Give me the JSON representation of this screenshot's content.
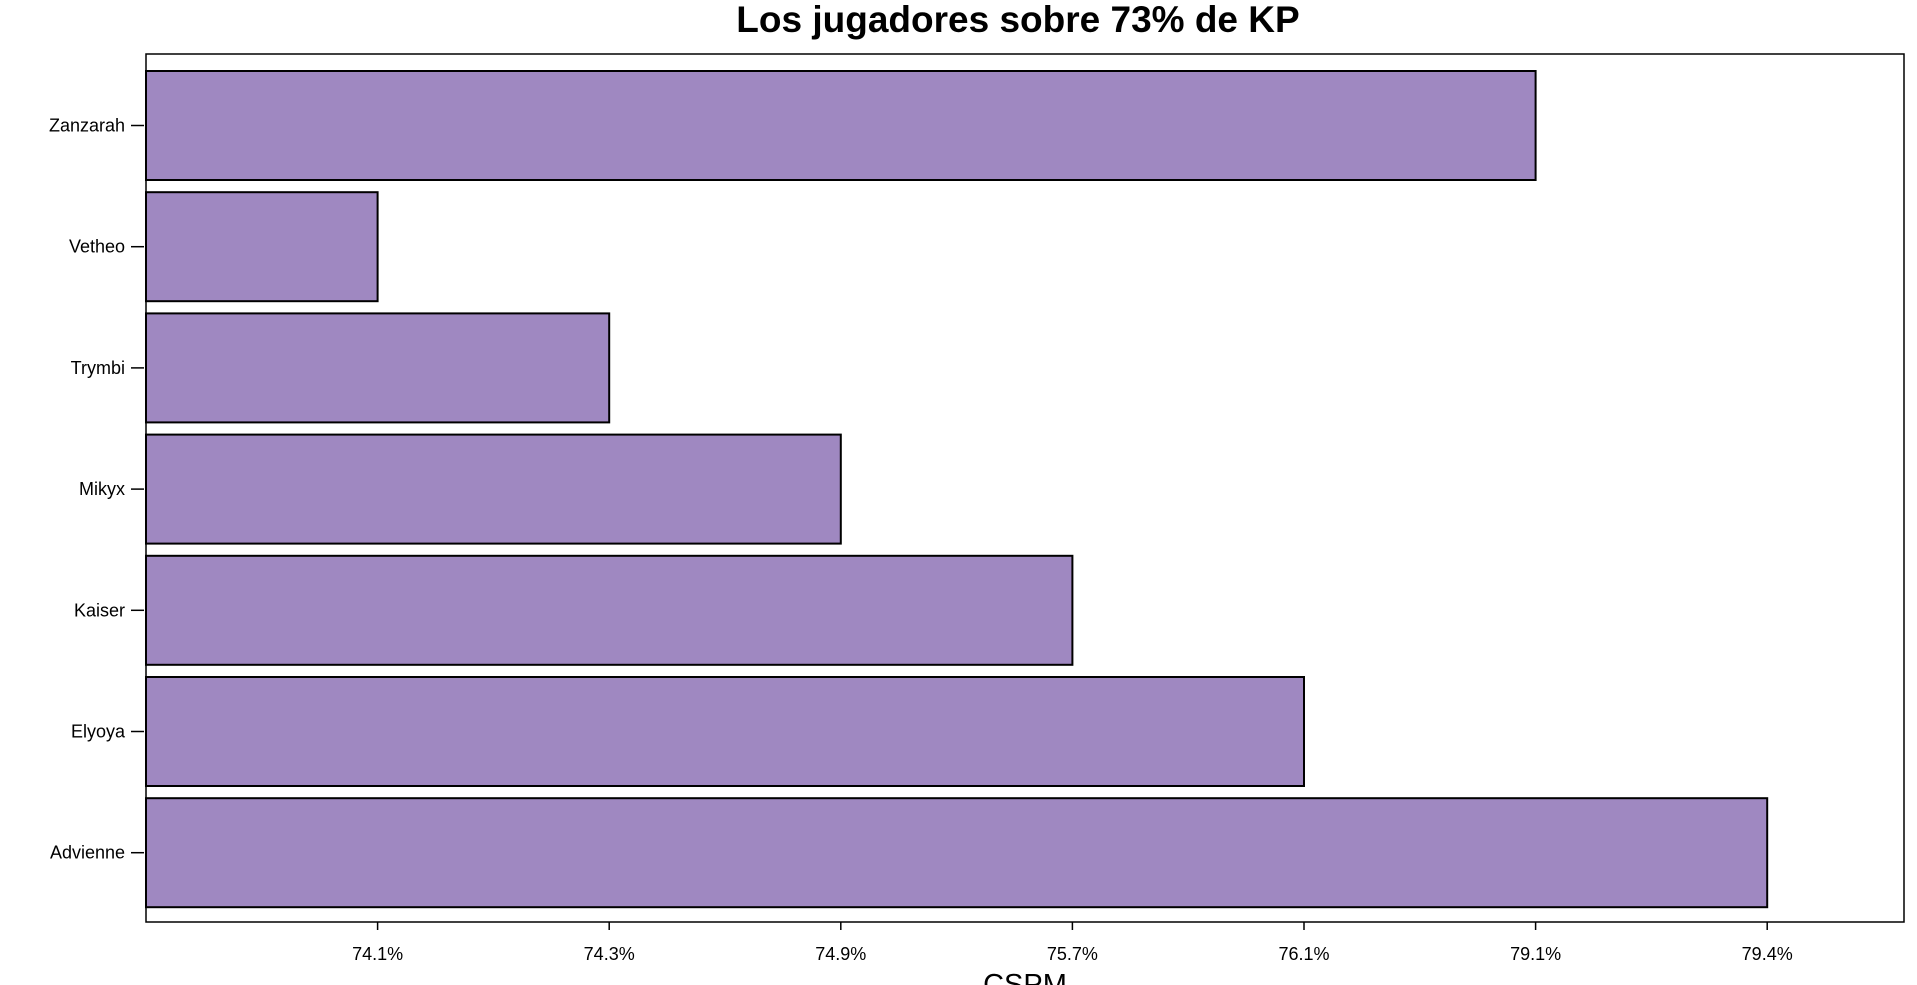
{
  "chart_data": {
    "type": "bar",
    "orientation": "horizontal",
    "title": "Los jugadores sobre 73% de KP",
    "xlabel": "CSPM",
    "ylabel": "",
    "categories": [
      "Advienne",
      "Elyoya",
      "Kaiser",
      "Mikyx",
      "Trymbi",
      "Vetheo",
      "Zanzarah"
    ],
    "x_tick_labels": [
      "74.1%",
      "74.3%",
      "74.9%",
      "75.7%",
      "76.1%",
      "79.1%",
      "79.4%"
    ],
    "values": [
      7.0,
      5.0,
      4.0,
      3.0,
      2.0,
      1.0,
      6.0
    ],
    "xlim": [
      0,
      7.6
    ],
    "grid": false,
    "legend": "none",
    "colors": {
      "bar_fill": "#9f88c1",
      "bar_edge": "#000000"
    }
  }
}
